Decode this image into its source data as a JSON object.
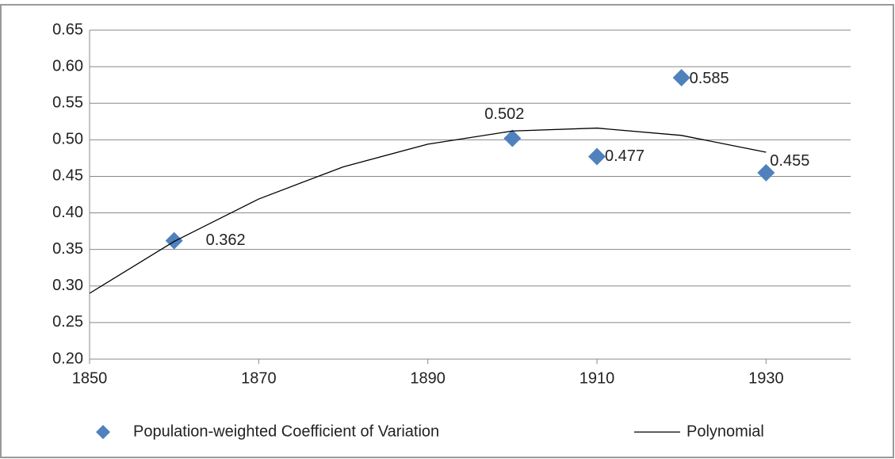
{
  "chart_data": {
    "type": "scatter",
    "xlim": [
      1850,
      1940
    ],
    "xticks": [
      1850,
      1870,
      1890,
      1910,
      1930
    ],
    "ylim": [
      0.2,
      0.65
    ],
    "yticks": [
      {
        "value": 0.2,
        "label": "0.20"
      },
      0.25,
      {
        "value": 0.3,
        "label": "0.30"
      },
      0.35,
      {
        "value": 0.4,
        "label": "0.40"
      },
      0.45,
      {
        "value": 0.5,
        "label": "0.50"
      },
      0.55,
      {
        "value": 0.6,
        "label": "0.60"
      },
      0.65
    ],
    "grid": true,
    "legend": "bottom",
    "series": [
      {
        "name": "Population-weighted Coefficient of Variation",
        "color": "#4f81bd",
        "marker": "diamond",
        "x": [
          1860,
          1900,
          1910,
          1920,
          1930
        ],
        "values": [
          0.362,
          0.502,
          0.477,
          0.585,
          0.455
        ]
      },
      {
        "name": "Polynomial",
        "color": "#000000",
        "marker": "line",
        "x": [
          1850,
          1860,
          1870,
          1880,
          1890,
          1900,
          1910,
          1920,
          1930
        ],
        "values": [
          0.29,
          0.361,
          0.419,
          0.463,
          0.494,
          0.512,
          0.516,
          0.506,
          0.483
        ]
      }
    ]
  }
}
